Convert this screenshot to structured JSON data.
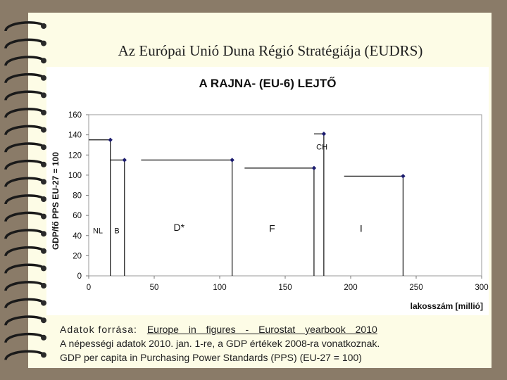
{
  "slide": {
    "title": "Az Európai Unió Duna Régió Stratégiája (EUDRS)"
  },
  "chart_data": {
    "type": "line",
    "title": "A RAJNA- (EU-6) LEJTŐ",
    "xlabel": "lakosszám [millió]",
    "ylabel": "GDP/fő PPS EU-27 = 100",
    "xlim": [
      0,
      300
    ],
    "ylim": [
      0,
      160
    ],
    "xticks": [
      0,
      50,
      100,
      150,
      200,
      250,
      300
    ],
    "yticks": [
      0,
      20,
      40,
      60,
      80,
      100,
      120,
      140,
      160
    ],
    "grid": false,
    "series": [
      {
        "label": "NL",
        "x_start": 0,
        "x_end": 16.5,
        "value": 135
      },
      {
        "label": "B",
        "x_start": 16.5,
        "x_end": 27.3,
        "value": 115
      },
      {
        "label": "D*",
        "x_start": 40,
        "x_end": 109.5,
        "value": 115
      },
      {
        "label": "F",
        "x_start": 119,
        "x_end": 172,
        "value": 107
      },
      {
        "label": "CH",
        "x_start": 172,
        "x_end": 179.5,
        "value": 141
      },
      {
        "label": "I",
        "x_start": 195,
        "x_end": 240,
        "value": 99
      }
    ]
  },
  "footer": {
    "source_label": "Adatok forrása:",
    "source_link": "Europe in figures - Eurostat yearbook 2010",
    "note1": "A népességi adatok 2010. jan. 1-re, a GDP értékek 2008-ra vonatkoznak.",
    "note2": "GDP per capita in Purchasing Power Standards (PPS) (EU-27 = 100)"
  }
}
